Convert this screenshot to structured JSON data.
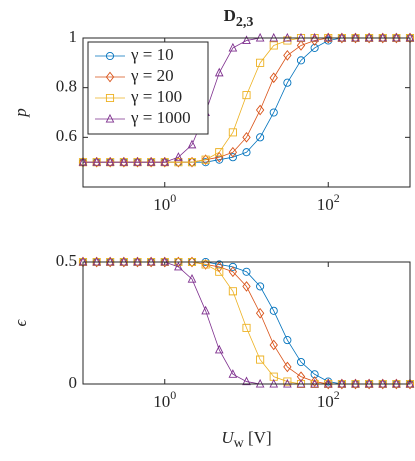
{
  "chart_data": [
    {
      "type": "line",
      "title": "D",
      "title_sub": "2,3",
      "ylabel": "p",
      "log_x": true,
      "legend": "northwest",
      "x": [
        0.1,
        0.147,
        0.215,
        0.316,
        0.464,
        0.681,
        1,
        1.468,
        2.154,
        3.162,
        4.642,
        6.813,
        10,
        14.68,
        21.54,
        31.62,
        46.42,
        68.13,
        100,
        146.8,
        215.4,
        316.2,
        464.2,
        681.3,
        1000
      ],
      "xlim": [
        0.1,
        1000
      ],
      "xticks": [
        {
          "value": 1,
          "label": "10",
          "exponent": "0"
        },
        {
          "value": 100,
          "label": "10",
          "exponent": "2"
        }
      ],
      "ylim": [
        0.4,
        1
      ],
      "yticks": [
        0.6,
        0.8,
        1
      ],
      "series": [
        {
          "name": "γ = 10",
          "color": "#0072BD",
          "marker": "circle",
          "values": [
            0.5,
            0.5,
            0.5,
            0.5,
            0.5,
            0.5,
            0.5,
            0.5,
            0.5,
            0.5,
            0.51,
            0.52,
            0.54,
            0.6,
            0.7,
            0.82,
            0.91,
            0.96,
            0.99,
            1,
            1,
            1,
            1,
            1,
            1
          ]
        },
        {
          "name": "γ = 20",
          "color": "#D95319",
          "marker": "diamond",
          "values": [
            0.5,
            0.5,
            0.5,
            0.5,
            0.5,
            0.5,
            0.5,
            0.5,
            0.5,
            0.51,
            0.52,
            0.54,
            0.6,
            0.71,
            0.84,
            0.93,
            0.97,
            0.99,
            1,
            1,
            1,
            1,
            1,
            1,
            1
          ]
        },
        {
          "name": "γ = 100",
          "color": "#EDB120",
          "marker": "square",
          "values": [
            0.5,
            0.5,
            0.5,
            0.5,
            0.5,
            0.5,
            0.5,
            0.5,
            0.5,
            0.51,
            0.54,
            0.62,
            0.77,
            0.9,
            0.97,
            0.99,
            1,
            1,
            1,
            1,
            1,
            1,
            1,
            1,
            1
          ]
        },
        {
          "name": "γ = 1000",
          "color": "#7E2F8E",
          "marker": "triangle",
          "values": [
            0.5,
            0.5,
            0.5,
            0.5,
            0.5,
            0.5,
            0.5,
            0.52,
            0.57,
            0.7,
            0.86,
            0.96,
            0.99,
            1,
            1,
            1,
            1,
            1,
            1,
            1,
            1,
            1,
            1,
            1,
            1
          ]
        }
      ]
    },
    {
      "type": "line",
      "ylabel": "ϵ",
      "xlabel": "U",
      "xlabel_sub": "w",
      "xlabel_unit": " [V]",
      "log_x": true,
      "x": [
        0.1,
        0.147,
        0.215,
        0.316,
        0.464,
        0.681,
        1,
        1.468,
        2.154,
        3.162,
        4.642,
        6.813,
        10,
        14.68,
        21.54,
        31.62,
        46.42,
        68.13,
        100,
        146.8,
        215.4,
        316.2,
        464.2,
        681.3,
        1000
      ],
      "xlim": [
        0.1,
        1000
      ],
      "xticks": [
        {
          "value": 1,
          "label": "10",
          "exponent": "0"
        },
        {
          "value": 100,
          "label": "10",
          "exponent": "2"
        }
      ],
      "ylim": [
        0,
        0.5
      ],
      "yticks": [
        0,
        0.5
      ],
      "series": [
        {
          "name": "γ = 10",
          "color": "#0072BD",
          "marker": "circle",
          "values": [
            0.5,
            0.5,
            0.5,
            0.5,
            0.5,
            0.5,
            0.5,
            0.5,
            0.5,
            0.5,
            0.49,
            0.48,
            0.46,
            0.4,
            0.3,
            0.18,
            0.09,
            0.04,
            0.01,
            0,
            0,
            0,
            0,
            0,
            0
          ]
        },
        {
          "name": "γ = 20",
          "color": "#D95319",
          "marker": "diamond",
          "values": [
            0.5,
            0.5,
            0.5,
            0.5,
            0.5,
            0.5,
            0.5,
            0.5,
            0.5,
            0.49,
            0.48,
            0.46,
            0.4,
            0.29,
            0.16,
            0.07,
            0.03,
            0.01,
            0,
            0,
            0,
            0,
            0,
            0,
            0
          ]
        },
        {
          "name": "γ = 100",
          "color": "#EDB120",
          "marker": "square",
          "values": [
            0.5,
            0.5,
            0.5,
            0.5,
            0.5,
            0.5,
            0.5,
            0.5,
            0.5,
            0.49,
            0.46,
            0.38,
            0.23,
            0.1,
            0.03,
            0.01,
            0,
            0,
            0,
            0,
            0,
            0,
            0,
            0,
            0
          ]
        },
        {
          "name": "γ = 1000",
          "color": "#7E2F8E",
          "marker": "triangle",
          "values": [
            0.5,
            0.5,
            0.5,
            0.5,
            0.5,
            0.5,
            0.5,
            0.48,
            0.43,
            0.3,
            0.14,
            0.04,
            0.01,
            0,
            0,
            0,
            0,
            0,
            0,
            0,
            0,
            0,
            0,
            0,
            0
          ]
        }
      ]
    }
  ]
}
